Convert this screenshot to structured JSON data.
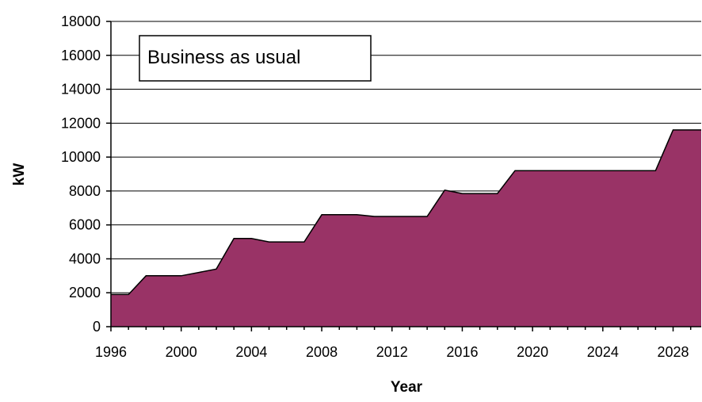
{
  "chart_data": {
    "type": "area",
    "title": "",
    "xlabel": "Year",
    "ylabel": "kW",
    "annotation": "Business as usual",
    "xlim": [
      1996,
      2029.6
    ],
    "ylim": [
      0,
      18000
    ],
    "x_ticks": [
      1996,
      2000,
      2004,
      2008,
      2012,
      2016,
      2020,
      2024,
      2028
    ],
    "y_ticks": [
      0,
      2000,
      4000,
      6000,
      8000,
      10000,
      12000,
      14000,
      16000,
      18000
    ],
    "grid": "horizontal",
    "fill_color": "#993366",
    "line_color": "#000000",
    "series": [
      {
        "x": [
          1996,
          1997,
          1998,
          1999,
          2000,
          2001,
          2002,
          2003,
          2004,
          2005,
          2006,
          2007,
          2008,
          2009,
          2010,
          2011,
          2012,
          2013,
          2014,
          2015,
          2016,
          2017,
          2018,
          2019,
          2020,
          2021,
          2022,
          2023,
          2024,
          2025,
          2026,
          2027,
          2028,
          2029,
          2029.6
        ],
        "values": [
          1900,
          1900,
          3000,
          3000,
          3000,
          3200,
          3400,
          5200,
          5200,
          5000,
          5000,
          5000,
          6600,
          6600,
          6600,
          6500,
          6500,
          6500,
          6500,
          8050,
          7850,
          7850,
          7850,
          9200,
          9200,
          9200,
          9200,
          9200,
          9200,
          9200,
          9200,
          9200,
          11600,
          11600,
          11600
        ]
      }
    ]
  }
}
